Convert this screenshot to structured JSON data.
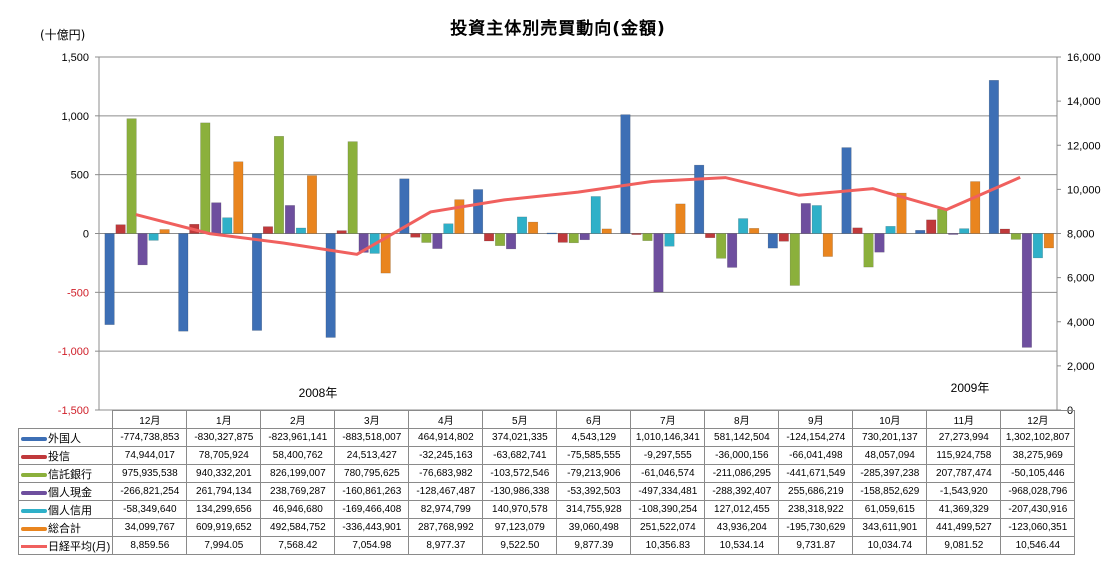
{
  "chart_data": {
    "type": "bar",
    "title": "投資主体別売買動向(金額)",
    "ylabel": "(十億円)",
    "ylim": [
      -1500,
      1500
    ],
    "yticks": [
      "1,500",
      "1,000",
      "500",
      "0",
      "-500",
      "-1,000",
      "-1,500"
    ],
    "y2lim": [
      0,
      16000
    ],
    "y2ticks": [
      "16,000",
      "14,000",
      "12,000",
      "10,000",
      "8,000",
      "6,000",
      "4,000",
      "2,000",
      "0"
    ],
    "grid": true,
    "legend": "table",
    "categories": [
      "12月",
      "1月",
      "2月",
      "3月",
      "4月",
      "5月",
      "6月",
      "7月",
      "8月",
      "9月",
      "10月",
      "11月",
      "12月"
    ],
    "year_labels": [
      "2008年",
      "2009年"
    ],
    "series": [
      {
        "name": "外国人",
        "type": "bar",
        "color": "#3d6fb5",
        "values": [
          "-774,738,853",
          "-830,327,875",
          "-823,961,141",
          "-883,518,007",
          "464,914,802",
          "374,021,335",
          "4,543,129",
          "1,010,146,341",
          "581,142,504",
          "-124,154,274",
          "730,201,137",
          "27,273,994",
          "1,302,102,807"
        ]
      },
      {
        "name": "投信",
        "type": "bar",
        "color": "#c0393b",
        "values": [
          "74,944,017",
          "78,705,924",
          "58,400,762",
          "24,513,427",
          "-32,245,163",
          "-63,682,741",
          "-75,585,555",
          "-9,297,555",
          "-36,000,156",
          "-66,041,498",
          "48,057,094",
          "115,924,758",
          "38,275,969"
        ]
      },
      {
        "name": "信託銀行",
        "type": "bar",
        "color": "#8bb03c",
        "values": [
          "975,935,538",
          "940,332,201",
          "826,199,007",
          "780,795,625",
          "-76,683,982",
          "-103,572,546",
          "-79,213,906",
          "-61,046,574",
          "-211,086,295",
          "-441,671,549",
          "-285,397,238",
          "207,787,474",
          "-50,105,446"
        ]
      },
      {
        "name": "個人現金",
        "type": "bar",
        "color": "#6e4f9e",
        "values": [
          "-266,821,254",
          "261,794,134",
          "238,769,287",
          "-160,861,263",
          "-128,467,487",
          "-130,986,338",
          "-53,392,503",
          "-497,334,481",
          "-288,392,407",
          "255,686,219",
          "-158,852,629",
          "-1,543,920",
          "-968,028,796"
        ]
      },
      {
        "name": "個人信用",
        "type": "bar",
        "color": "#2fb0c8",
        "values": [
          "-58,349,640",
          "134,299,656",
          "46,946,680",
          "-169,466,408",
          "82,974,799",
          "140,970,578",
          "314,755,928",
          "-108,390,254",
          "127,012,455",
          "238,318,922",
          "61,059,615",
          "41,369,329",
          "-207,430,916"
        ]
      },
      {
        "name": "総合計",
        "type": "bar",
        "color": "#e9851f",
        "values": [
          "34,099,767",
          "609,919,652",
          "492,584,752",
          "-336,443,901",
          "287,768,992",
          "97,123,079",
          "39,060,498",
          "251,522,074",
          "43,936,204",
          "-195,730,629",
          "343,611,901",
          "441,499,527",
          "-123,060,351"
        ]
      },
      {
        "name": "日経平均(月)",
        "type": "line",
        "axis": "right",
        "color": "#f0605e",
        "values": [
          "8,859.56",
          "7,994.05",
          "7,568.42",
          "7,054.98",
          "8,977.37",
          "9,522.50",
          "9,877.39",
          "10,356.83",
          "10,534.14",
          "9,731.87",
          "10,034.74",
          "9,081.52",
          "10,546.44"
        ]
      }
    ]
  }
}
